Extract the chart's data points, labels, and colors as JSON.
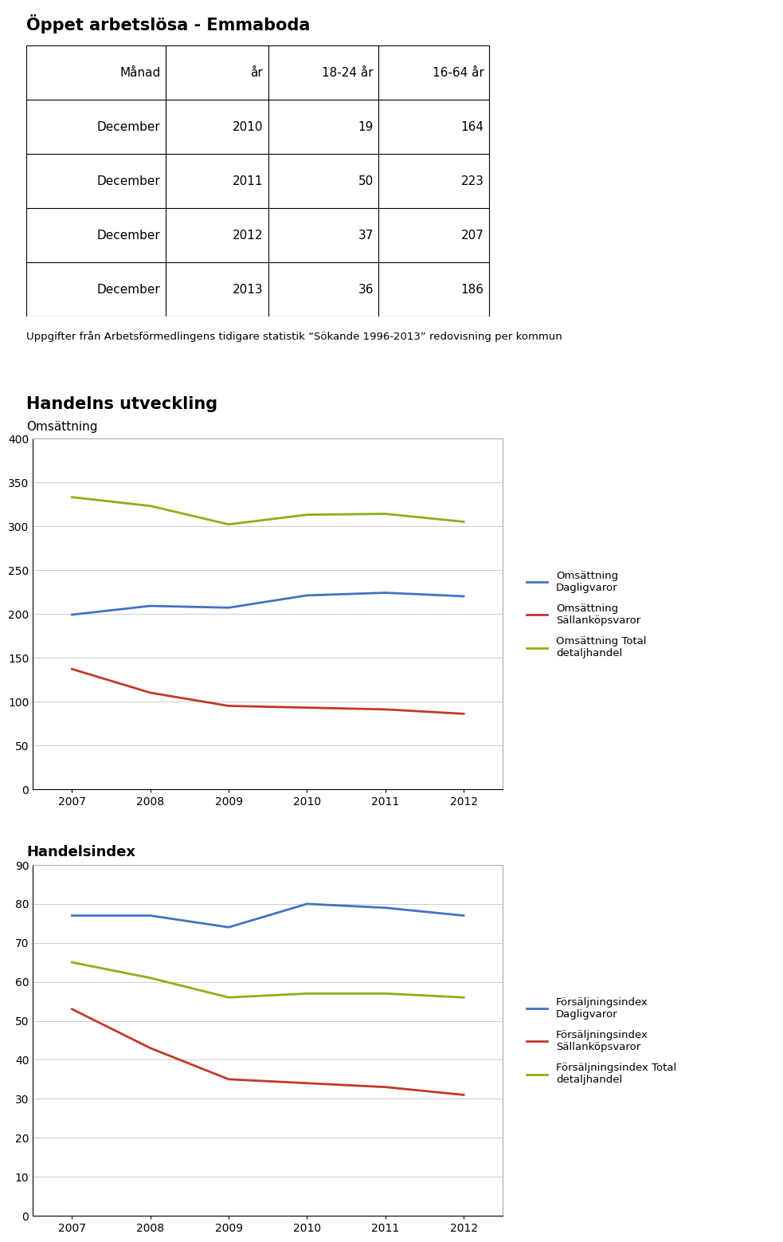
{
  "title": "Öppet arbetslösa - Emmaboda",
  "table_headers": [
    "Månad",
    "år",
    "18-24 år",
    "16-64 år"
  ],
  "table_data": [
    [
      "December",
      "2010",
      "19",
      "164"
    ],
    [
      "December",
      "2011",
      "50",
      "223"
    ],
    [
      "December",
      "2012",
      "37",
      "207"
    ],
    [
      "December",
      "2013",
      "36",
      "186"
    ]
  ],
  "footnote": "Uppgifter från Arbetsförmedlingens tidigare statistik “Sökande 1996-2013” redovisning per kommun",
  "chart1_title": "Handelns utveckling",
  "chart1_subtitle": "Omsättning",
  "chart1_years": [
    2007,
    2008,
    2009,
    2010,
    2011,
    2012
  ],
  "chart1_dagligvaror": [
    199,
    209,
    207,
    221,
    224,
    220
  ],
  "chart1_sallanköp": [
    137,
    110,
    95,
    93,
    91,
    86
  ],
  "chart1_total": [
    333,
    323,
    302,
    313,
    314,
    305
  ],
  "chart1_ylim": [
    0,
    400
  ],
  "chart1_yticks": [
    0,
    50,
    100,
    150,
    200,
    250,
    300,
    350,
    400
  ],
  "chart1_legend": [
    "Omsättning\nDagligvaror",
    "Omsättning\nSällanköpsvaror",
    "Omsättning Total\ndetaljhandel"
  ],
  "chart2_title": "Handelsindex",
  "chart2_years": [
    2007,
    2008,
    2009,
    2010,
    2011,
    2012
  ],
  "chart2_dagligvaror": [
    77,
    77,
    74,
    80,
    79,
    77
  ],
  "chart2_sallanköp": [
    53,
    43,
    35,
    34,
    33,
    31
  ],
  "chart2_total": [
    65,
    61,
    56,
    57,
    57,
    56
  ],
  "chart2_ylim": [
    0,
    90
  ],
  "chart2_yticks": [
    0,
    10,
    20,
    30,
    40,
    50,
    60,
    70,
    80,
    90
  ],
  "chart2_legend": [
    "Försäljningsindex\nDagligvaror",
    "Försäljningsindex\nSällanköpsvaror",
    "Försäljningsindex Total\ndetaljhandel"
  ],
  "color_blue": "#4472C4",
  "color_red": "#C0392B",
  "color_green": "#8DB013",
  "background_color": "#FFFFFF"
}
